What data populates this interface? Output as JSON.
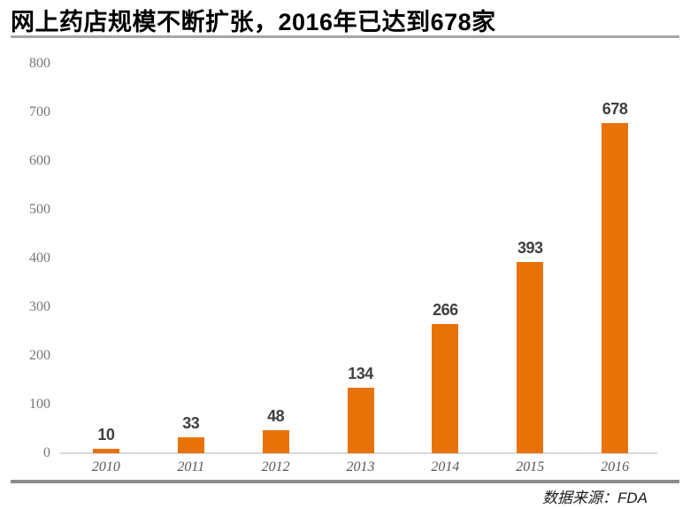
{
  "header": {
    "title": "网上药店规模不断扩张，2016年已达到678家"
  },
  "chart_data": {
    "type": "bar",
    "title": "网上药店规模不断扩张，2016年已达到678家",
    "categories": [
      "2010",
      "2011",
      "2012",
      "2013",
      "2014",
      "2015",
      "2016"
    ],
    "values": [
      10,
      33,
      48,
      134,
      266,
      393,
      678
    ],
    "data_labels": [
      "10",
      "33",
      "48",
      "134",
      "266",
      "393",
      "678"
    ],
    "xlabel": "",
    "ylabel": "",
    "ylim": [
      0,
      800
    ],
    "yticks": [
      0,
      100,
      200,
      300,
      400,
      500,
      600,
      700,
      800
    ],
    "grid": false,
    "legend": "none",
    "bar_color": "#E97208"
  },
  "footer": {
    "source": "数据来源：FDA"
  },
  "colors": {
    "bar": "#E97208",
    "title_rule": "#A6A6A6",
    "footer_rule": "#8C8C8C",
    "axis_line": "#D9D9D9",
    "ytick_text": "#757575",
    "xtick_text": "#595959",
    "data_label_text": "#3F3F3F"
  }
}
